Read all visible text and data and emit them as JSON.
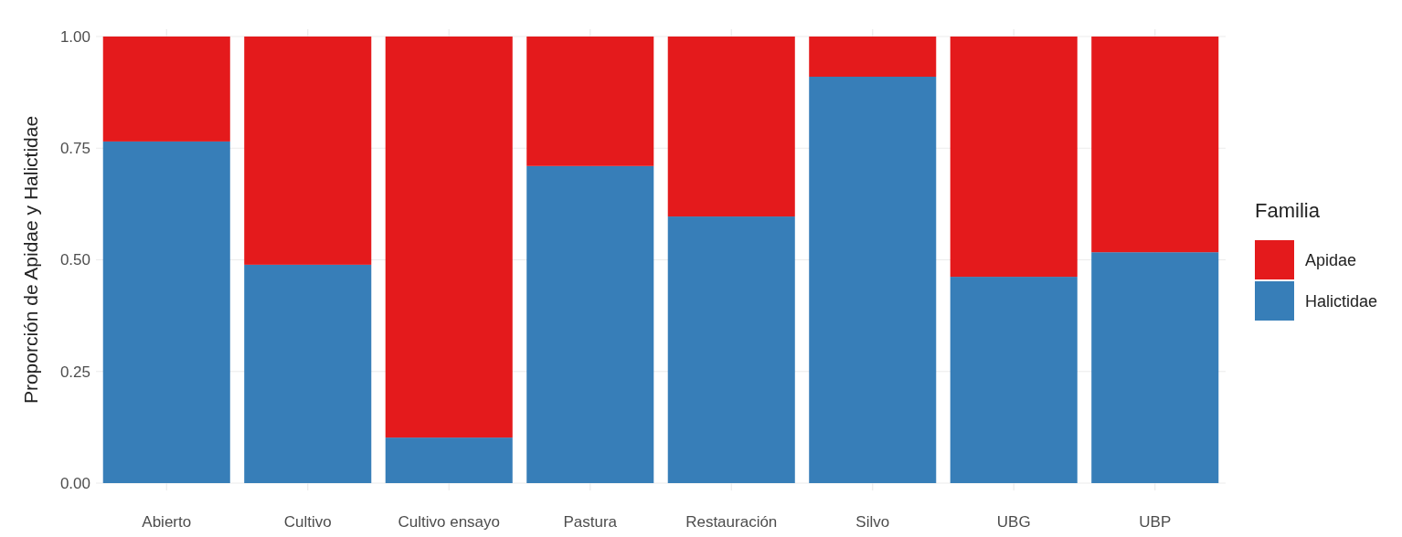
{
  "chart_data": {
    "type": "bar",
    "stacked": true,
    "ylabel": "Proporción de Apidae y Halictidae",
    "legend_title": "Familia",
    "categories": [
      "Abierto",
      "Cultivo",
      "Cultivo ensayo",
      "Pastura",
      "Restauración",
      "Silvo",
      "UBG",
      "UBP"
    ],
    "series": [
      {
        "name": "Halictidae",
        "color": "#377eb8",
        "values": [
          0.765,
          0.489,
          0.102,
          0.71,
          0.597,
          0.91,
          0.462,
          0.517
        ]
      },
      {
        "name": "Apidae",
        "color": "#e41a1c",
        "values": [
          0.235,
          0.511,
          0.898,
          0.29,
          0.403,
          0.09,
          0.538,
          0.483
        ]
      }
    ],
    "ylim": [
      0,
      1
    ],
    "yticks": [
      {
        "value": 0,
        "label": "0.00"
      },
      {
        "value": 0.25,
        "label": "0.25"
      },
      {
        "value": 0.5,
        "label": "0.50"
      },
      {
        "value": 0.75,
        "label": "0.75"
      },
      {
        "value": 1,
        "label": "1.00"
      }
    ],
    "grid": true,
    "legend": "right"
  }
}
